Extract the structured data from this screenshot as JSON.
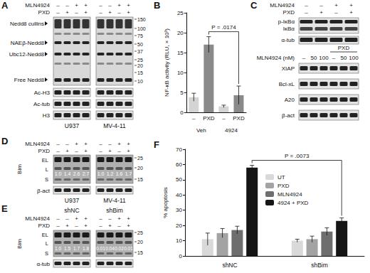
{
  "panels": {
    "A": {
      "letter": "A",
      "headers": [
        {
          "label": "MLN4924",
          "lanes": [
            "–",
            "–",
            "+",
            "+",
            "–",
            "–",
            "+",
            "+"
          ]
        },
        {
          "label": "PXD",
          "lanes": [
            "–",
            "+",
            "–",
            "+",
            "–",
            "+",
            "–",
            "+"
          ]
        }
      ],
      "nedd8_rows": [
        "Nedd8 cullins",
        "NAEβ-Nedd8",
        "Ubc12-Nedd8",
        "Free Nedd8"
      ],
      "strips": [
        "Ac-H3",
        "Ac-tub",
        "H3"
      ],
      "markers": [
        150,
        100,
        75,
        50,
        37,
        25,
        20,
        15,
        10
      ],
      "cell_lines": [
        "U937",
        "MV-4-11"
      ]
    },
    "C": {
      "letter": "C",
      "top": {
        "headers": [
          {
            "label": "MLN4924",
            "lanes": [
              "–",
              "–",
              "+",
              "+"
            ]
          },
          {
            "label": "PXD",
            "lanes": [
              "–",
              "+",
              "–",
              "+"
            ]
          }
        ],
        "rows": [
          "p-IκBα",
          "IκBα",
          "α-tub"
        ]
      },
      "bottom": {
        "bracket": "PXD",
        "header": {
          "label": "MLN4924 (nM)",
          "lanes": [
            "–",
            "50",
            "100",
            "–",
            "50",
            "100"
          ]
        },
        "rows": [
          "XIAP",
          "Bcl-xL",
          "A20",
          "β-act"
        ]
      }
    },
    "D": {
      "letter": "D",
      "headers": [
        {
          "label": "MLN4924",
          "lanes": [
            "–",
            "–",
            "+",
            "+",
            "–",
            "–",
            "+",
            "+"
          ]
        },
        {
          "label": "PXD",
          "lanes": [
            "–",
            "+",
            "–",
            "+",
            "–",
            "+",
            "–",
            "+"
          ]
        }
      ],
      "protein": "Bim",
      "isoforms": [
        "EL",
        "L",
        "S"
      ],
      "quantification": [
        "1.0",
        "1.4",
        "2.6",
        "2.7",
        "1.0",
        "1.2",
        "1.6",
        "1.7"
      ],
      "markers": [
        25,
        20,
        15
      ],
      "loading": "β-act",
      "cell_lines": [
        "U937",
        "MV-4-11"
      ]
    },
    "E": {
      "letter": "E",
      "groups": [
        "shNC",
        "shBim"
      ],
      "headers": [
        {
          "label": "MLN4924",
          "lanes": [
            "–",
            "–",
            "+",
            "+",
            "–",
            "–",
            "+",
            "+"
          ]
        },
        {
          "label": "PXD",
          "lanes": [
            "–",
            "+",
            "–",
            "+",
            "–",
            "+",
            "–",
            "+"
          ]
        }
      ],
      "protein": "Bim",
      "isoforms": [
        "EL",
        "L",
        "S"
      ],
      "quantification": [
        "1.0",
        "1.5",
        "1.7",
        "1.8",
        "0.01",
        "0.04",
        "0.02",
        "0.01"
      ],
      "markers": [
        25,
        20,
        15
      ],
      "loading": "α-tub"
    }
  },
  "chart_data": [
    {
      "panel": "B",
      "type": "bar",
      "y_label": "NF-κB activity (RLU, × 10³)",
      "categories": [
        "–",
        "PXD",
        "–",
        "PXD"
      ],
      "groups": [
        "Veh",
        "4924"
      ],
      "values": [
        3.8,
        17,
        1.5,
        4.3
      ],
      "errors": [
        1,
        2,
        0.3,
        2.3
      ],
      "colors": [
        "#d4d4d4",
        "#8a8a8a",
        "#d4d4d4",
        "#8a8a8a"
      ],
      "ylim": [
        0,
        25
      ],
      "yticks": [
        0,
        5,
        10,
        15,
        20,
        25
      ],
      "grid": false,
      "annotation": {
        "text": "P = .0174",
        "positions": [
          1,
          3
        ]
      }
    },
    {
      "panel": "F",
      "type": "bar",
      "y_label": "% apoptosis",
      "categories": [
        "shNC",
        "shBim"
      ],
      "series": [
        {
          "name": "UT",
          "color": "#d9d9d9",
          "values": [
            11,
            10
          ],
          "errors": [
            4,
            1
          ]
        },
        {
          "name": "PXD",
          "color": "#a3a3a3",
          "values": [
            15,
            11
          ],
          "errors": [
            3,
            2
          ]
        },
        {
          "name": "MLN4924",
          "color": "#6e6e6e",
          "values": [
            17,
            16
          ],
          "errors": [
            2.5,
            2.5
          ]
        },
        {
          "name": "4924 + PXD",
          "color": "#151515",
          "values": [
            58,
            23
          ],
          "errors": [
            1.5,
            2
          ]
        }
      ],
      "ylim": [
        0,
        70
      ],
      "yticks": [
        0,
        10,
        20,
        30,
        40,
        50,
        60,
        70
      ],
      "grid": false,
      "legend": "top",
      "annotation": {
        "text": "P = .0073",
        "series": "4924 + PXD",
        "categories": [
          "shNC",
          "shBim"
        ]
      }
    }
  ]
}
